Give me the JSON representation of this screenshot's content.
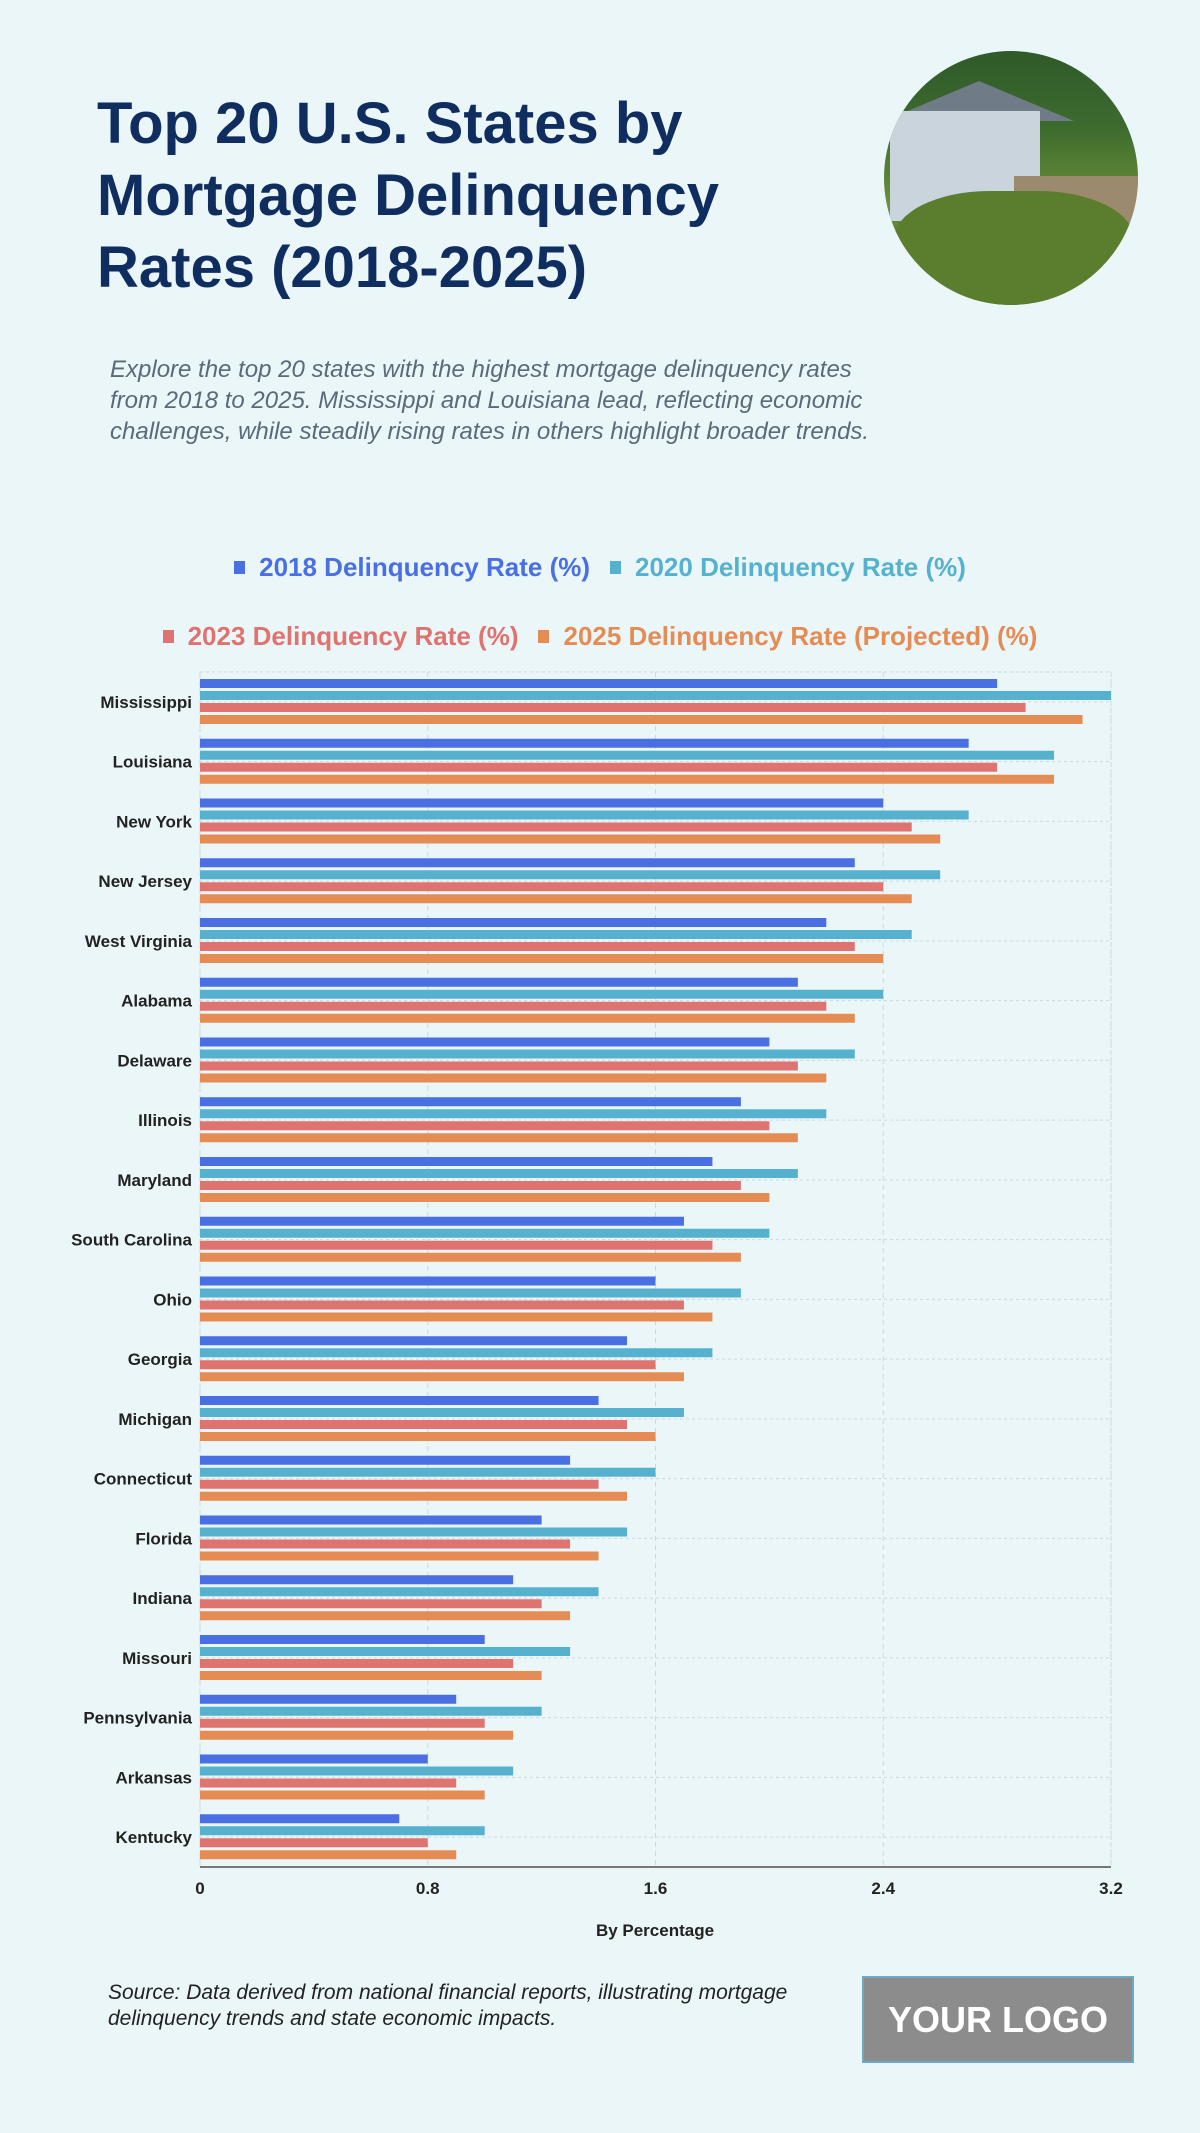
{
  "header": {
    "title": "Top 20 U.S. States by Mortgage Delinquency Rates (2018-2025)",
    "subtitle": "Explore the top 20 states with the highest mortgage delinquency rates from 2018 to 2025. Mississippi and Louisiana lead, reflecting economic challenges, while steadily rising rates in others highlight broader trends."
  },
  "footer": {
    "source": "Source: Data derived from national financial reports, illustrating mortgage delinquency trends and state economic impacts.",
    "logo": "YOUR LOGO"
  },
  "chart_data": {
    "type": "bar",
    "orientation": "horizontal",
    "title": "Top 20 U.S. States by Mortgage Delinquency Rates (2018-2025)",
    "xlabel": "By Percentage",
    "ylabel": "",
    "xlim": [
      0,
      3.2
    ],
    "xticks": [
      "0",
      "0.8",
      "1.6",
      "2.4",
      "3.2"
    ],
    "grid": true,
    "legend_position": "top",
    "categories": [
      "Mississippi",
      "Louisiana",
      "New York",
      "New Jersey",
      "West Virginia",
      "Alabama",
      "Delaware",
      "Illinois",
      "Maryland",
      "South Carolina",
      "Ohio",
      "Georgia",
      "Michigan",
      "Connecticut",
      "Florida",
      "Indiana",
      "Missouri",
      "Pennsylvania",
      "Arkansas",
      "Kentucky"
    ],
    "series": [
      {
        "name": "2018 Delinquency Rate (%)",
        "color": "#4a6fe3",
        "values": [
          2.8,
          2.7,
          2.4,
          2.3,
          2.2,
          2.1,
          2.0,
          1.9,
          1.8,
          1.7,
          1.6,
          1.5,
          1.4,
          1.3,
          1.2,
          1.1,
          1.0,
          0.9,
          0.8,
          0.7
        ]
      },
      {
        "name": "2020 Delinquency Rate (%)",
        "color": "#56b1cf",
        "values": [
          3.2,
          3.0,
          2.7,
          2.6,
          2.5,
          2.4,
          2.3,
          2.2,
          2.1,
          2.0,
          1.9,
          1.8,
          1.7,
          1.6,
          1.5,
          1.4,
          1.3,
          1.2,
          1.1,
          1.0
        ]
      },
      {
        "name": "2023 Delinquency Rate (%)",
        "color": "#df7370",
        "values": [
          2.9,
          2.8,
          2.5,
          2.4,
          2.3,
          2.2,
          2.1,
          2.0,
          1.9,
          1.8,
          1.7,
          1.6,
          1.5,
          1.4,
          1.3,
          1.2,
          1.1,
          1.0,
          0.9,
          0.8
        ]
      },
      {
        "name": "2025 Delinquency Rate (Projected) (%)",
        "color": "#e58c55",
        "values": [
          3.1,
          3.0,
          2.6,
          2.5,
          2.4,
          2.3,
          2.2,
          2.1,
          2.0,
          1.9,
          1.8,
          1.7,
          1.6,
          1.5,
          1.4,
          1.3,
          1.2,
          1.1,
          1.0,
          0.9
        ]
      }
    ]
  }
}
